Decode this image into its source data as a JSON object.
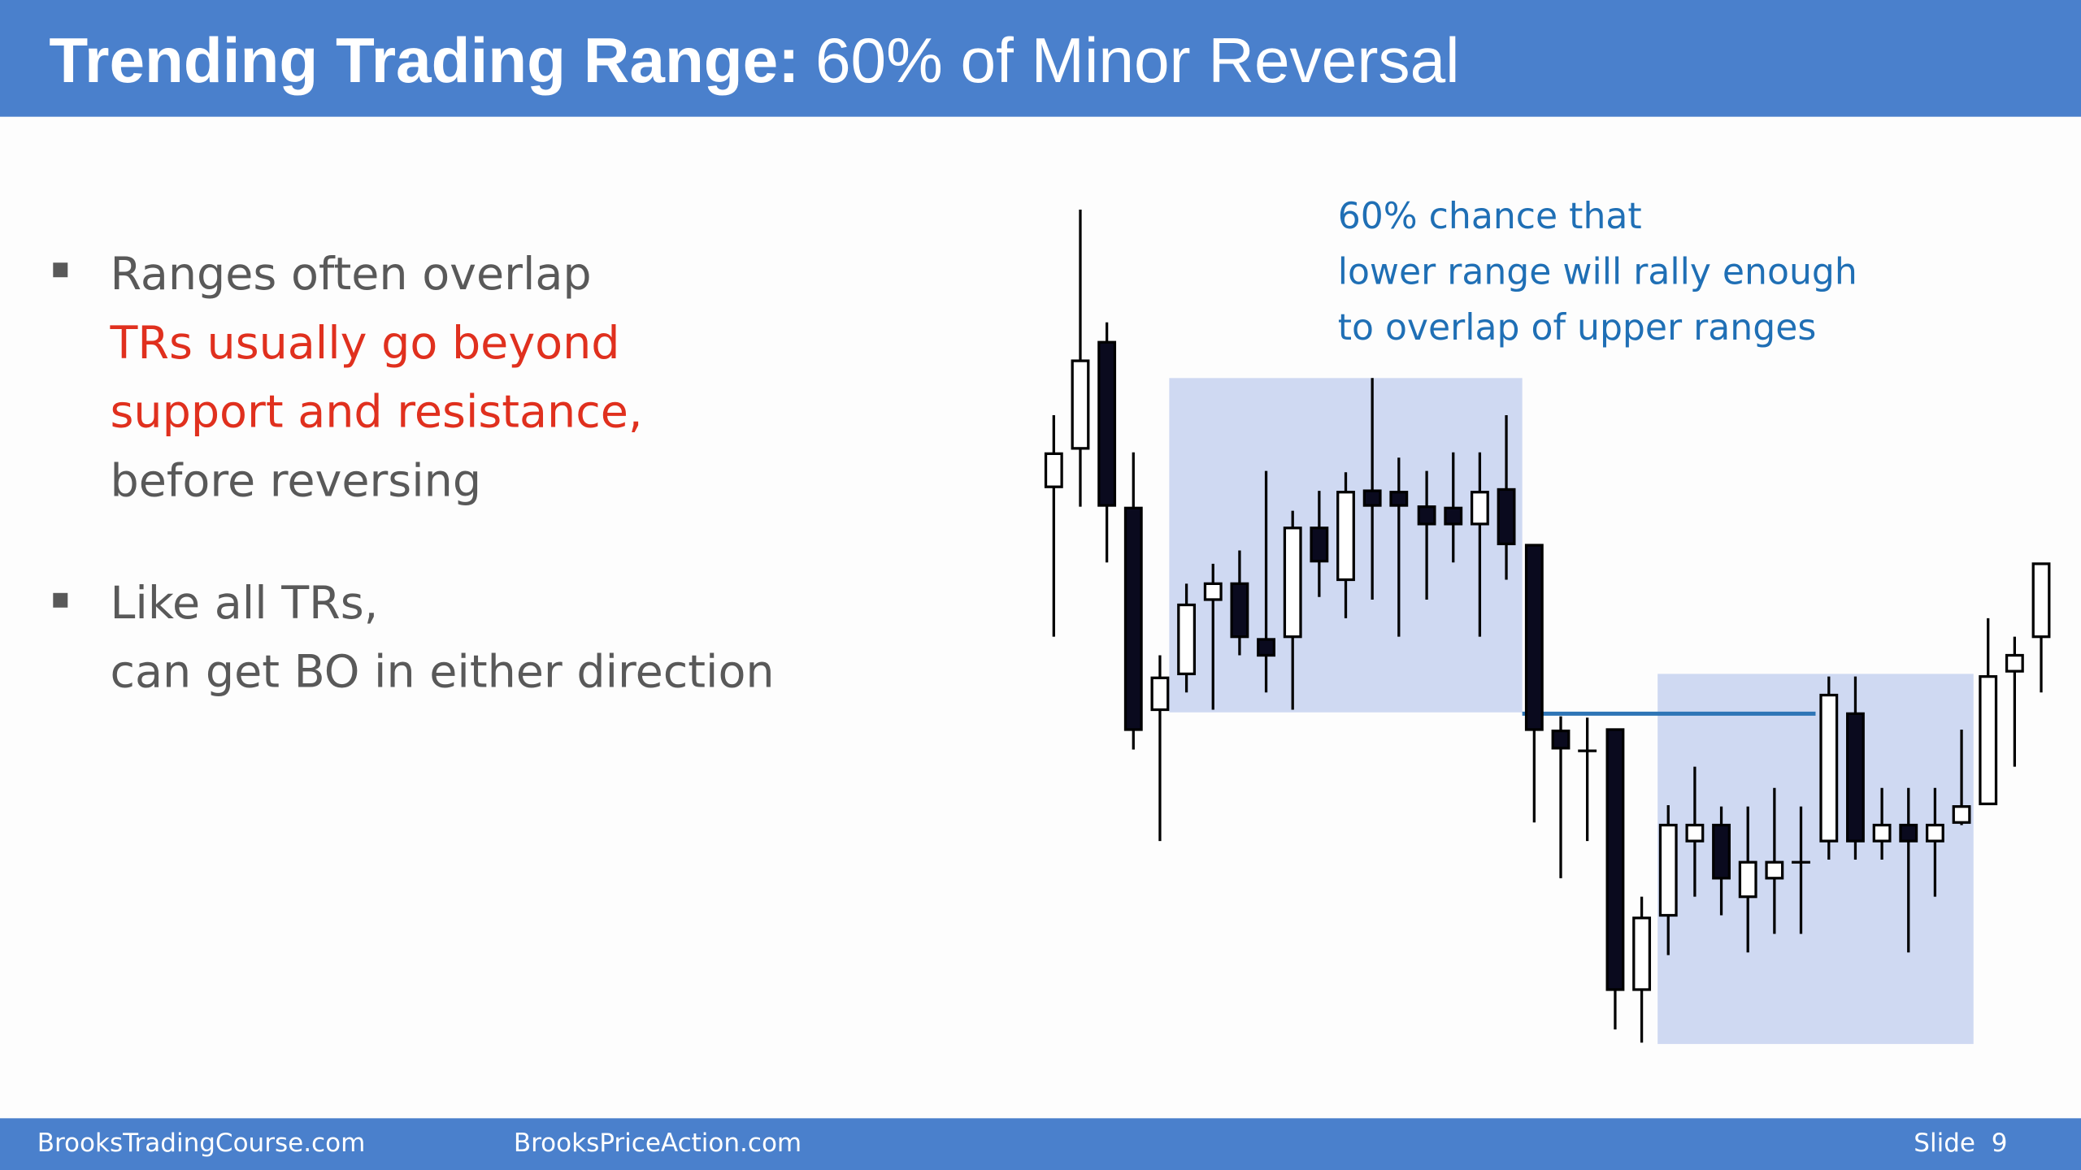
{
  "header": {
    "title_bold": "Trending Trading Range:",
    "title_rest": "60% of Minor Reversal"
  },
  "bullets": [
    {
      "lines": [
        "Ranges often overlap",
        "TRs usually go beyond",
        "support and resistance,",
        "before reversing"
      ]
    },
    {
      "lines": [
        "Like all TRs,",
        "can get BO in either direction"
      ]
    }
  ],
  "annotation": {
    "lines": [
      "60% chance that",
      "lower range will rally enough",
      "to overlap of upper ranges"
    ]
  },
  "footer": {
    "left": "BrooksTradingCourse.com",
    "middle": "BrooksPriceAction.com",
    "slide": "Slide  9"
  }
}
